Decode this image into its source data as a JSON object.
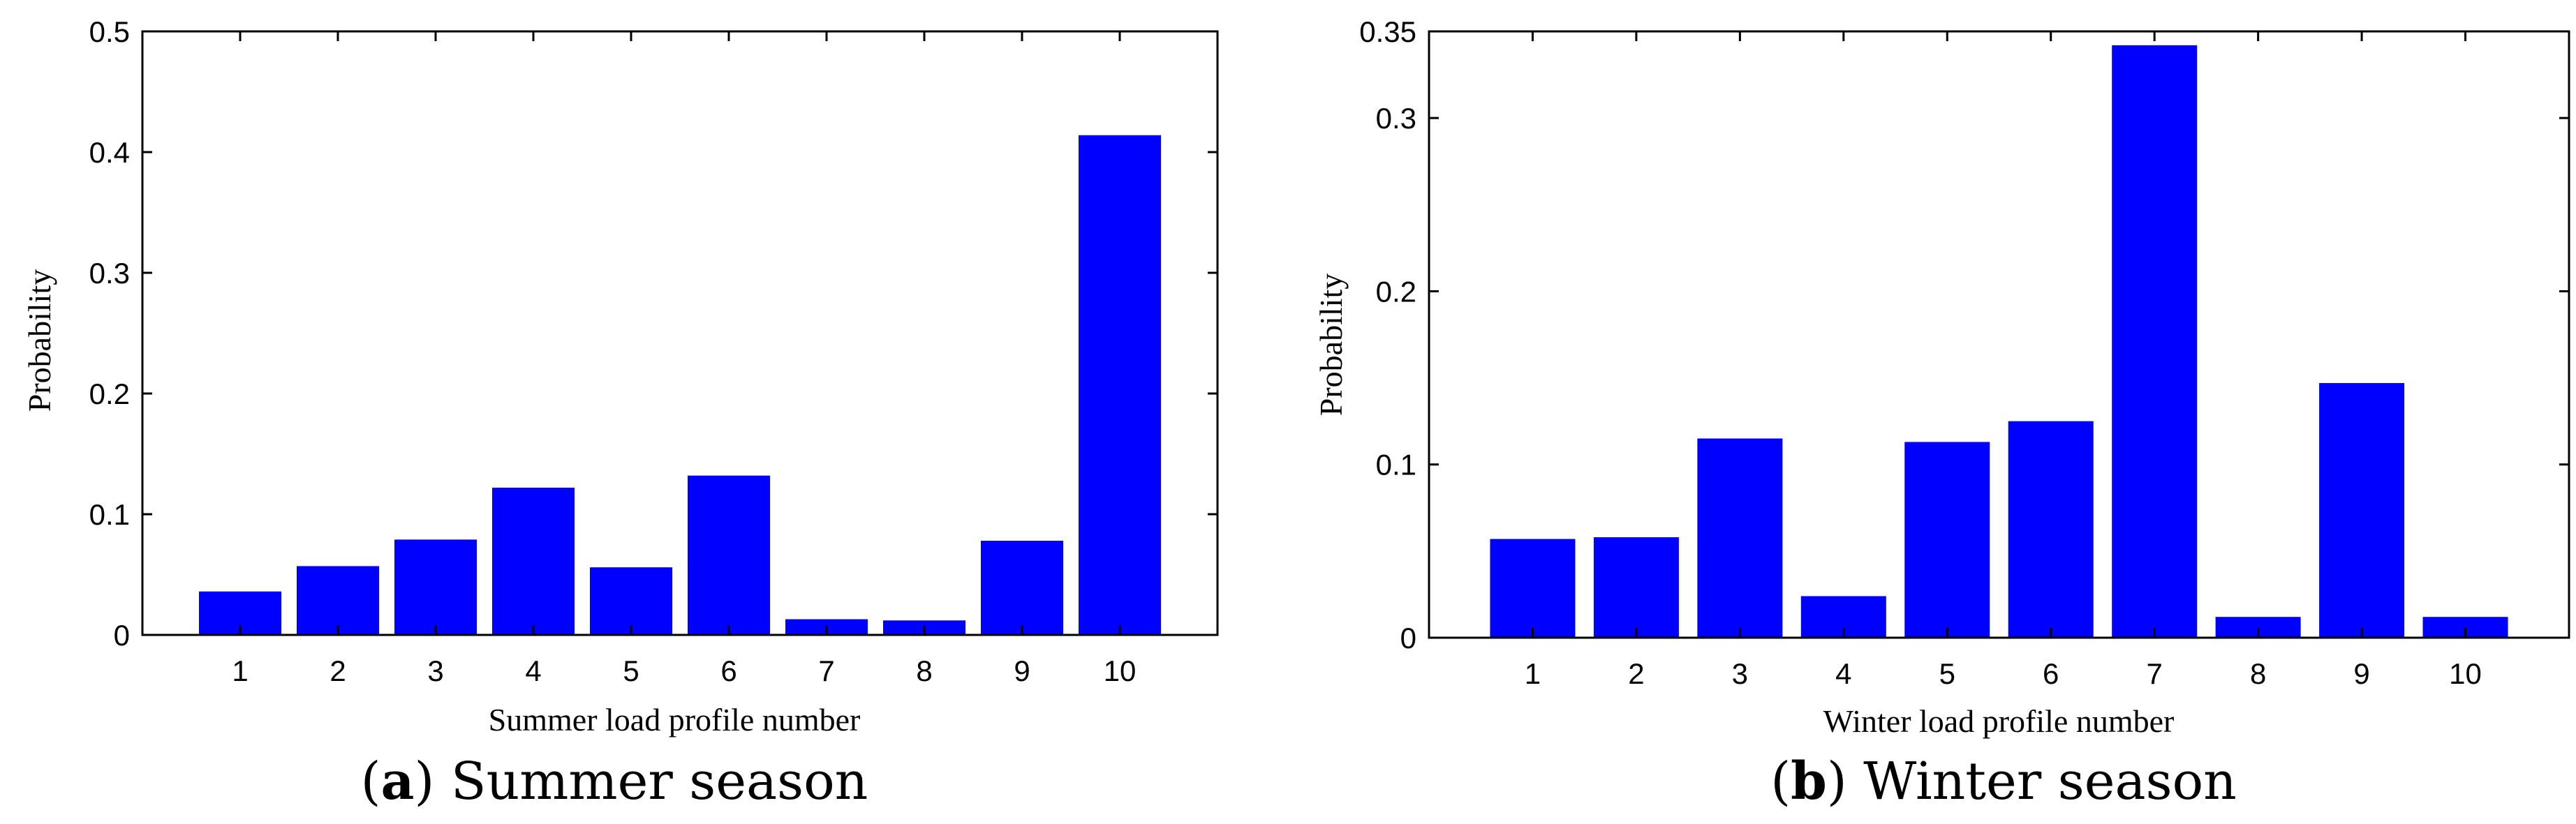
{
  "chart_data": [
    {
      "type": "bar",
      "panel_letter": "a",
      "caption": "Summer season",
      "categories": [
        "1",
        "2",
        "3",
        "4",
        "5",
        "6",
        "7",
        "8",
        "9",
        "10"
      ],
      "values": [
        0.036,
        0.057,
        0.079,
        0.122,
        0.056,
        0.132,
        0.013,
        0.012,
        0.078,
        0.414
      ],
      "xlabel": "Summer load profile number",
      "ylabel": "Probability",
      "ylim": [
        0,
        0.5
      ],
      "yticks": [
        0,
        0.1,
        0.2,
        0.3,
        0.4,
        0.5
      ],
      "ytick_labels": [
        "0",
        "0.1",
        "0.2",
        "0.3",
        "0.4",
        "0.5"
      ],
      "bar_color": "#0000ff",
      "grid": false
    },
    {
      "type": "bar",
      "panel_letter": "b",
      "caption": "Winter season",
      "categories": [
        "1",
        "2",
        "3",
        "4",
        "5",
        "6",
        "7",
        "8",
        "9",
        "10"
      ],
      "values": [
        0.057,
        0.058,
        0.115,
        0.024,
        0.113,
        0.125,
        0.342,
        0.012,
        0.147,
        0.012
      ],
      "xlabel": "Winter load profile number",
      "ylabel": "Probability",
      "ylim": [
        0,
        0.35
      ],
      "yticks": [
        0,
        0.1,
        0.2,
        0.3,
        0.35
      ],
      "ytick_labels": [
        "0",
        "0.1",
        "0.2",
        "0.3",
        "0.35"
      ],
      "bar_color": "#0000ff",
      "grid": false
    }
  ]
}
